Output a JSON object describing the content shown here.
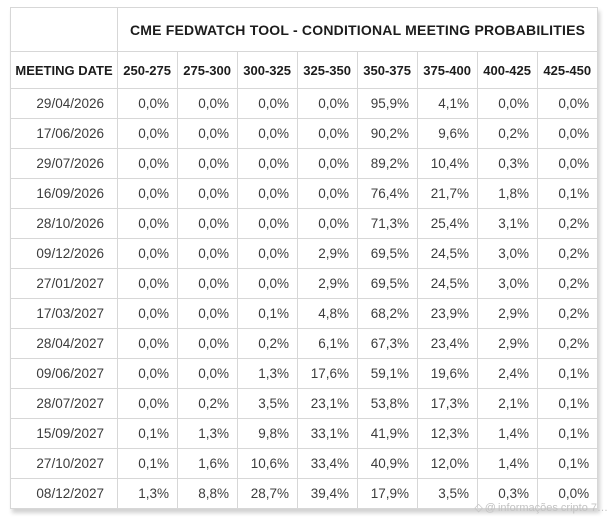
{
  "chart_data": {
    "type": "table",
    "title": "CME FEDWATCH TOOL - CONDITIONAL MEETING PROBABILITIES",
    "date_column_header": "MEETING DATE",
    "corner_label": "",
    "columns": [
      "250-275",
      "275-300",
      "300-325",
      "325-350",
      "350-375",
      "375-400",
      "400-425",
      "425-450"
    ],
    "rows": [
      {
        "date": "29/04/2026",
        "values": [
          "0,0%",
          "0,0%",
          "0,0%",
          "0,0%",
          "95,9%",
          "4,1%",
          "0,0%",
          "0,0%"
        ],
        "highlights": [
          {
            "col": 4,
            "color": "cyan"
          }
        ]
      },
      {
        "date": "17/06/2026",
        "values": [
          "0,0%",
          "0,0%",
          "0,0%",
          "0,0%",
          "90,2%",
          "9,6%",
          "0,2%",
          "0,0%"
        ],
        "highlights": [
          {
            "col": 4,
            "color": "cyan"
          }
        ]
      },
      {
        "date": "29/07/2026",
        "values": [
          "0,0%",
          "0,0%",
          "0,0%",
          "0,0%",
          "89,2%",
          "10,4%",
          "0,3%",
          "0,0%"
        ],
        "highlights": [
          {
            "col": 4,
            "color": "cyan"
          }
        ]
      },
      {
        "date": "16/09/2026",
        "values": [
          "0,0%",
          "0,0%",
          "0,0%",
          "0,0%",
          "76,4%",
          "21,7%",
          "1,8%",
          "0,1%"
        ],
        "highlights": [
          {
            "col": 4,
            "color": "cyan"
          }
        ]
      },
      {
        "date": "28/10/2026",
        "values": [
          "0,0%",
          "0,0%",
          "0,0%",
          "0,0%",
          "71,3%",
          "25,4%",
          "3,1%",
          "0,2%"
        ],
        "highlights": [
          {
            "col": 4,
            "color": "cyan"
          }
        ]
      },
      {
        "date": "09/12/2026",
        "values": [
          "0,0%",
          "0,0%",
          "0,0%",
          "2,9%",
          "69,5%",
          "24,5%",
          "3,0%",
          "0,2%"
        ],
        "highlights": [
          {
            "col": 4,
            "color": "cyan"
          }
        ]
      },
      {
        "date": "27/01/2027",
        "values": [
          "0,0%",
          "0,0%",
          "0,0%",
          "2,9%",
          "69,5%",
          "24,5%",
          "3,0%",
          "0,2%"
        ],
        "highlights": [
          {
            "col": 4,
            "color": "cyan"
          }
        ]
      },
      {
        "date": "17/03/2027",
        "values": [
          "0,0%",
          "0,0%",
          "0,1%",
          "4,8%",
          "68,2%",
          "23,9%",
          "2,9%",
          "0,2%"
        ],
        "highlights": [
          {
            "col": 4,
            "color": "cyan"
          }
        ]
      },
      {
        "date": "28/04/2027",
        "values": [
          "0,0%",
          "0,0%",
          "0,2%",
          "6,1%",
          "67,3%",
          "23,4%",
          "2,9%",
          "0,2%"
        ],
        "highlights": [
          {
            "col": 4,
            "color": "cyan"
          }
        ]
      },
      {
        "date": "09/06/2027",
        "values": [
          "0,0%",
          "0,0%",
          "1,3%",
          "17,6%",
          "59,1%",
          "19,6%",
          "2,4%",
          "0,1%"
        ],
        "highlights": [
          {
            "col": 4,
            "color": "cyan"
          }
        ]
      },
      {
        "date": "28/07/2027",
        "values": [
          "0,0%",
          "0,2%",
          "3,5%",
          "23,1%",
          "53,8%",
          "17,3%",
          "2,1%",
          "0,1%"
        ],
        "highlights": [
          {
            "col": 4,
            "color": "cyan"
          }
        ]
      },
      {
        "date": "15/09/2027",
        "values": [
          "0,1%",
          "1,3%",
          "9,8%",
          "33,1%",
          "41,9%",
          "12,3%",
          "1,4%",
          "0,1%"
        ],
        "highlights": [
          {
            "col": 4,
            "color": "cyan"
          }
        ]
      },
      {
        "date": "27/10/2027",
        "values": [
          "0,1%",
          "1,6%",
          "10,6%",
          "33,4%",
          "40,9%",
          "12,0%",
          "1,4%",
          "0,1%"
        ],
        "highlights": [
          {
            "col": 4,
            "color": "cyan"
          }
        ]
      },
      {
        "date": "08/12/2027",
        "values": [
          "1,3%",
          "8,8%",
          "28,7%",
          "39,4%",
          "17,9%",
          "3,5%",
          "0,3%",
          "0,0%"
        ],
        "highlights": [
          {
            "col": 3,
            "color": "cyan"
          },
          {
            "col": 4,
            "color": "yellow"
          }
        ]
      }
    ]
  },
  "colors": {
    "cyan_highlight": "#c8f0f2",
    "yellow_highlight": "#f6f3d6",
    "border": "#d7d7d7",
    "header_text": "#1c1c1c",
    "data_text": "#3c3c3c",
    "watermark_text": "#c3c3c3"
  },
  "watermark": {
    "diamond_icon": "◇",
    "at_icon": "@",
    "text": "informações cripto 7…"
  }
}
